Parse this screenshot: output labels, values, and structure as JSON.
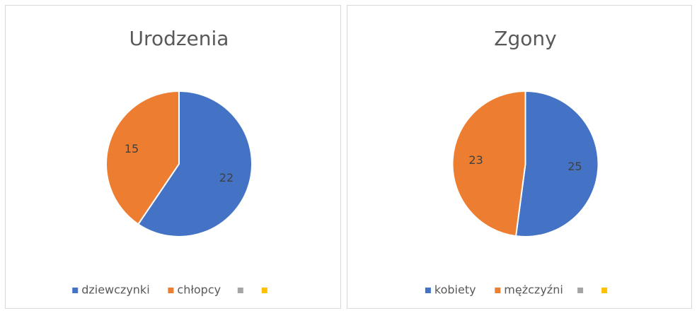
{
  "chart_data": [
    {
      "type": "pie",
      "title": "Urodzenia",
      "categories": [
        "dziewczynki",
        "chłopcy",
        null,
        null
      ],
      "values": [
        22,
        15,
        null,
        null
      ],
      "colors": [
        "#4472c4",
        "#ed7d31",
        "#a5a5a5",
        "#ffc000"
      ],
      "legend": "bottom"
    },
    {
      "type": "pie",
      "title": "Zgony",
      "categories": [
        "kobiety",
        "mężczyźni",
        null,
        null
      ],
      "values": [
        25,
        23,
        null,
        null
      ],
      "colors": [
        "#4472c4",
        "#ed7d31",
        "#a5a5a5",
        "#ffc000"
      ],
      "legend": "bottom"
    }
  ]
}
